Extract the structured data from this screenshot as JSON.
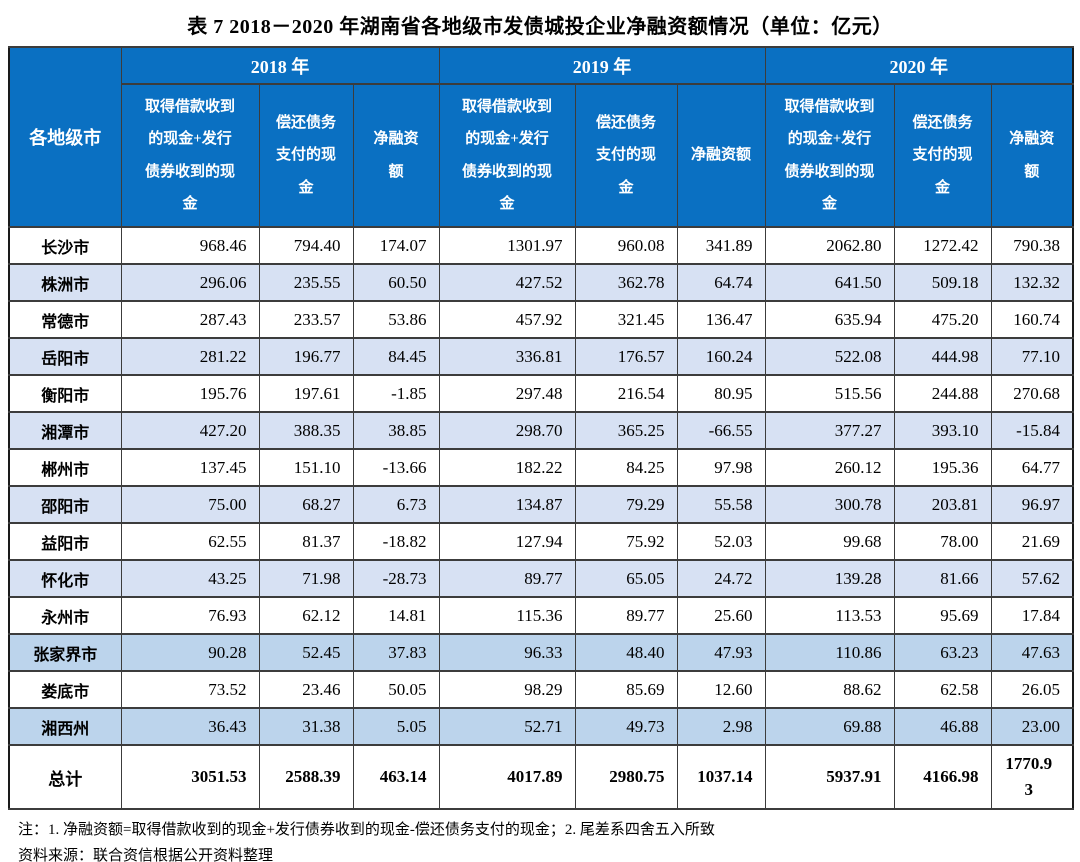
{
  "title": "表 7  2018－2020 年湖南省各地级市发债城投企业净融资额情况（单位：亿元）",
  "table": {
    "corner_header": "各地级市",
    "year_groups": [
      {
        "label": "2018 年",
        "columns": [
          "取得借款收到\n的现金+发行\n债券收到的现\n金",
          "偿还债务\n支付的现\n金",
          "净融资\n额"
        ]
      },
      {
        "label": "2019 年",
        "columns": [
          "取得借款收到\n的现金+发行\n债券收到的现\n金",
          "偿还债务\n支付的现\n金",
          "净融资额"
        ]
      },
      {
        "label": "2020 年",
        "columns": [
          "取得借款收到\n的现金+发行\n债券收到的现\n金",
          "偿还债务\n支付的现\n金",
          "净融资\n额"
        ]
      }
    ],
    "rows": [
      {
        "city": "长沙市",
        "shade": "white",
        "values": [
          "968.46",
          "794.40",
          "174.07",
          "1301.97",
          "960.08",
          "341.89",
          "2062.80",
          "1272.42",
          "790.38"
        ]
      },
      {
        "city": "株洲市",
        "shade": "alt",
        "values": [
          "296.06",
          "235.55",
          "60.50",
          "427.52",
          "362.78",
          "64.74",
          "641.50",
          "509.18",
          "132.32"
        ]
      },
      {
        "city": "常德市",
        "shade": "white",
        "values": [
          "287.43",
          "233.57",
          "53.86",
          "457.92",
          "321.45",
          "136.47",
          "635.94",
          "475.20",
          "160.74"
        ]
      },
      {
        "city": "岳阳市",
        "shade": "alt",
        "values": [
          "281.22",
          "196.77",
          "84.45",
          "336.81",
          "176.57",
          "160.24",
          "522.08",
          "444.98",
          "77.10"
        ]
      },
      {
        "city": "衡阳市",
        "shade": "white",
        "values": [
          "195.76",
          "197.61",
          "-1.85",
          "297.48",
          "216.54",
          "80.95",
          "515.56",
          "244.88",
          "270.68"
        ]
      },
      {
        "city": "湘潭市",
        "shade": "alt",
        "values": [
          "427.20",
          "388.35",
          "38.85",
          "298.70",
          "365.25",
          "-66.55",
          "377.27",
          "393.10",
          "-15.84"
        ]
      },
      {
        "city": "郴州市",
        "shade": "white",
        "values": [
          "137.45",
          "151.10",
          "-13.66",
          "182.22",
          "84.25",
          "97.98",
          "260.12",
          "195.36",
          "64.77"
        ]
      },
      {
        "city": "邵阳市",
        "shade": "alt",
        "values": [
          "75.00",
          "68.27",
          "6.73",
          "134.87",
          "79.29",
          "55.58",
          "300.78",
          "203.81",
          "96.97"
        ]
      },
      {
        "city": "益阳市",
        "shade": "white",
        "values": [
          "62.55",
          "81.37",
          "-18.82",
          "127.94",
          "75.92",
          "52.03",
          "99.68",
          "78.00",
          "21.69"
        ]
      },
      {
        "city": "怀化市",
        "shade": "alt",
        "values": [
          "43.25",
          "71.98",
          "-28.73",
          "89.77",
          "65.05",
          "24.72",
          "139.28",
          "81.66",
          "57.62"
        ]
      },
      {
        "city": "永州市",
        "shade": "white",
        "values": [
          "76.93",
          "62.12",
          "14.81",
          "115.36",
          "89.77",
          "25.60",
          "113.53",
          "95.69",
          "17.84"
        ]
      },
      {
        "city": "张家界市",
        "shade": "alt-dark",
        "values": [
          "90.28",
          "52.45",
          "37.83",
          "96.33",
          "48.40",
          "47.93",
          "110.86",
          "63.23",
          "47.63"
        ]
      },
      {
        "city": "娄底市",
        "shade": "white",
        "values": [
          "73.52",
          "23.46",
          "50.05",
          "98.29",
          "85.69",
          "12.60",
          "88.62",
          "62.58",
          "26.05"
        ]
      },
      {
        "city": "湘西州",
        "shade": "alt-dark",
        "values": [
          "36.43",
          "31.38",
          "5.05",
          "52.71",
          "49.73",
          "2.98",
          "69.88",
          "46.88",
          "23.00"
        ]
      }
    ],
    "total": {
      "label": "总计",
      "values": [
        "3051.53",
        "2588.39",
        "463.14",
        "4017.89",
        "2980.75",
        "1037.14",
        "5937.91",
        "4166.98",
        "1770.9\n3"
      ]
    }
  },
  "notes": [
    "注：1. 净融资额=取得借款收到的现金+发行债券收到的现金-偿还债务支付的现金；2. 尾差系四舍五入所致",
    "资料来源：联合资信根据公开资料整理"
  ],
  "colors": {
    "header_bg": "#0a70c2",
    "row_alt": "#d7e1f3",
    "row_alt_dark": "#bcd4ec",
    "border": "#3c3c3c"
  }
}
